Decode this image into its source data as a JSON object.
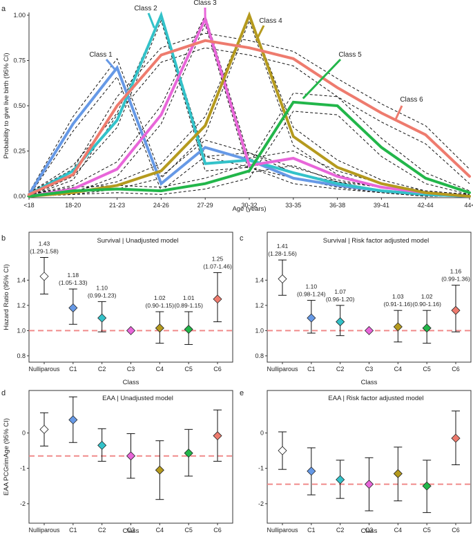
{
  "chart_data": [
    {
      "panel": "a",
      "type": "line",
      "title": "",
      "xlabel": "Age (years)",
      "ylabel": "Probability to give live birth (95% CI)",
      "categories": [
        "<18",
        "18-20",
        "21-23",
        "24-26",
        "27-29",
        "30-32",
        "33-35",
        "36-38",
        "39-41",
        "42-44",
        "44<"
      ],
      "ylim": [
        0,
        1
      ],
      "yticks": [
        0,
        0.25,
        0.5,
        0.75,
        1
      ],
      "ytick_labels": [
        "0.00",
        "0.25",
        "0.50",
        "0.75",
        "1.00"
      ],
      "series": [
        {
          "name": "Class 1",
          "color": "#6699e6",
          "values": [
            0.01,
            0.4,
            0.71,
            0.07,
            0.27,
            0.2,
            0.1,
            0.06,
            0.03,
            0.01,
            0.0
          ],
          "ci_lower": [
            0.0,
            0.36,
            0.66,
            0.03,
            0.22,
            0.16,
            0.07,
            0.04,
            0.02,
            0.0,
            0.0
          ],
          "ci_upper": [
            0.02,
            0.44,
            0.76,
            0.11,
            0.31,
            0.24,
            0.13,
            0.08,
            0.05,
            0.02,
            0.01
          ],
          "label_pos": "left"
        },
        {
          "name": "Class 2",
          "color": "#33c2c9",
          "values": [
            0.01,
            0.14,
            0.42,
            1.0,
            0.18,
            0.2,
            0.13,
            0.07,
            0.03,
            0.01,
            0.0
          ],
          "ci_lower": [
            0.0,
            0.11,
            0.38,
            0.97,
            0.14,
            0.16,
            0.1,
            0.05,
            0.02,
            0.0,
            0.0
          ],
          "ci_upper": [
            0.02,
            0.17,
            0.46,
            1.0,
            0.22,
            0.24,
            0.16,
            0.09,
            0.05,
            0.02,
            0.01
          ],
          "label_pos": "top"
        },
        {
          "name": "Class 3",
          "color": "#e866d9",
          "values": [
            0.0,
            0.04,
            0.15,
            0.45,
            0.98,
            0.17,
            0.21,
            0.11,
            0.05,
            0.02,
            0.0
          ],
          "ci_lower": [
            0.0,
            0.02,
            0.11,
            0.4,
            0.95,
            0.13,
            0.17,
            0.08,
            0.03,
            0.01,
            0.0
          ],
          "ci_upper": [
            0.01,
            0.06,
            0.19,
            0.5,
            1.0,
            0.21,
            0.25,
            0.14,
            0.07,
            0.03,
            0.01
          ],
          "label_pos": "top"
        },
        {
          "name": "Class 4",
          "color": "#b59a1e",
          "values": [
            0.0,
            0.02,
            0.06,
            0.14,
            0.39,
            1.0,
            0.33,
            0.16,
            0.07,
            0.02,
            0.0
          ],
          "ci_lower": [
            0.0,
            0.01,
            0.04,
            0.1,
            0.34,
            0.97,
            0.28,
            0.12,
            0.05,
            0.01,
            0.0
          ],
          "ci_upper": [
            0.01,
            0.03,
            0.08,
            0.18,
            0.44,
            1.0,
            0.38,
            0.2,
            0.09,
            0.03,
            0.01
          ],
          "label_pos": "right"
        },
        {
          "name": "Class 5",
          "color": "#22b64a",
          "values": [
            0.0,
            0.03,
            0.04,
            0.03,
            0.07,
            0.14,
            0.52,
            0.5,
            0.27,
            0.1,
            0.02
          ],
          "ci_lower": [
            0.0,
            0.01,
            0.02,
            0.01,
            0.04,
            0.1,
            0.47,
            0.45,
            0.22,
            0.07,
            0.01
          ],
          "ci_upper": [
            0.01,
            0.05,
            0.06,
            0.05,
            0.1,
            0.18,
            0.57,
            0.55,
            0.32,
            0.13,
            0.03
          ],
          "label_pos": "right"
        },
        {
          "name": "Class 6",
          "color": "#ee7b6e",
          "values": [
            0.01,
            0.12,
            0.5,
            0.78,
            0.86,
            0.82,
            0.76,
            0.6,
            0.46,
            0.34,
            0.11
          ],
          "ci_lower": [
            0.0,
            0.09,
            0.45,
            0.74,
            0.82,
            0.78,
            0.72,
            0.55,
            0.41,
            0.29,
            0.07
          ],
          "ci_upper": [
            0.02,
            0.15,
            0.55,
            0.82,
            0.9,
            0.86,
            0.8,
            0.65,
            0.51,
            0.39,
            0.15
          ],
          "label_pos": "right"
        }
      ]
    },
    {
      "panel": "b",
      "type": "scatter",
      "title": "Survival | Unadjusted model",
      "xlabel": "Class",
      "ylabel": "Hazard Ratio (95% CI)",
      "categories": [
        "Nulliparous",
        "C1",
        "C2",
        "C3",
        "C4",
        "C5",
        "C6"
      ],
      "ylim": [
        0.75,
        1.78
      ],
      "yticks": [
        0.8,
        1.0,
        1.2,
        1.4
      ],
      "ytick_labels": [
        "0.8",
        "1.0",
        "1.2",
        "1.4"
      ],
      "reference_line": 1.0,
      "values": [
        1.43,
        1.18,
        1.1,
        1.0,
        1.02,
        1.01,
        1.25
      ],
      "ci_lower": [
        1.29,
        1.05,
        0.99,
        null,
        0.9,
        0.89,
        1.07
      ],
      "ci_upper": [
        1.58,
        1.33,
        1.23,
        null,
        1.15,
        1.15,
        1.46
      ],
      "point_labels": [
        "1.43",
        "1.18",
        "1.10",
        "",
        "1.02",
        "1.01",
        "1.25"
      ],
      "ci_labels": [
        "(1.29-1.58)",
        "(1.05-1.33)",
        "(0.99-1.23)",
        "",
        "(0.90-1.15)",
        "(0.89-1.15)",
        "(1.07-1.46)"
      ],
      "colors": [
        "#ffffff",
        "#6699e6",
        "#33c2c9",
        "#e866d9",
        "#b59a1e",
        "#22b64a",
        "#ee7b6e"
      ]
    },
    {
      "panel": "c",
      "type": "scatter",
      "title": "Survival | Risk factor adjusted model",
      "xlabel": "Class",
      "ylabel": "",
      "categories": [
        "Nulliparous",
        "C1",
        "C2",
        "C3",
        "C4",
        "C5",
        "C6"
      ],
      "ylim": [
        0.75,
        1.78
      ],
      "yticks": [
        0.8,
        1.0,
        1.2,
        1.4
      ],
      "ytick_labels": [
        "0.8",
        "1.0",
        "1.2",
        "1.4"
      ],
      "reference_line": 1.0,
      "values": [
        1.41,
        1.1,
        1.07,
        1.0,
        1.03,
        1.02,
        1.16
      ],
      "ci_lower": [
        1.28,
        0.98,
        0.96,
        null,
        0.91,
        0.9,
        0.99
      ],
      "ci_upper": [
        1.56,
        1.24,
        1.2,
        null,
        1.16,
        1.16,
        1.36
      ],
      "point_labels": [
        "1.41",
        "1.10",
        "1.07",
        "",
        "1.03",
        "1.02",
        "1.16"
      ],
      "ci_labels": [
        "(1.28-1.56)",
        "(0.98-1.24)",
        "(0.96-1.20)",
        "",
        "(0.91-1.16)",
        "(0.90-1.16)",
        "(0.99-1.36)"
      ],
      "colors": [
        "#ffffff",
        "#6699e6",
        "#33c2c9",
        "#e866d9",
        "#b59a1e",
        "#22b64a",
        "#ee7b6e"
      ]
    },
    {
      "panel": "d",
      "type": "scatter",
      "title": "EAA | Unadjusted model",
      "xlabel": "Class",
      "ylabel": "EAA PCGrimAge (95% CI)",
      "categories": [
        "Nulliparous",
        "C1",
        "C2",
        "C3",
        "C4",
        "C5",
        "C6"
      ],
      "ylim": [
        -2.55,
        1.2
      ],
      "yticks": [
        -2,
        -1,
        0
      ],
      "ytick_labels": [
        "-2",
        "-1",
        "0"
      ],
      "reference_line": -0.65,
      "values": [
        0.1,
        0.37,
        -0.35,
        -0.65,
        -1.05,
        -0.57,
        -0.08
      ],
      "ci_lower": [
        -0.37,
        -0.27,
        -0.8,
        -1.28,
        -1.88,
        -1.22,
        -0.8
      ],
      "ci_upper": [
        0.57,
        1.02,
        0.12,
        -0.02,
        -0.22,
        0.1,
        0.65
      ],
      "colors": [
        "#ffffff",
        "#6699e6",
        "#33c2c9",
        "#e866d9",
        "#b59a1e",
        "#22b64a",
        "#ee7b6e"
      ]
    },
    {
      "panel": "e",
      "type": "scatter",
      "title": "EAA | Risk factor adjusted model",
      "xlabel": "Class",
      "ylabel": "",
      "categories": [
        "Nulliparous",
        "C1",
        "C2",
        "C3",
        "C4",
        "C5",
        "C6"
      ],
      "ylim": [
        -2.55,
        1.2
      ],
      "yticks": [
        -2,
        -1,
        0
      ],
      "ytick_labels": [
        "-2",
        "-1",
        "0"
      ],
      "reference_line": -1.45,
      "values": [
        -0.5,
        -1.08,
        -1.32,
        -1.45,
        -1.15,
        -1.5,
        -0.15
      ],
      "ci_lower": [
        -1.03,
        -1.75,
        -1.85,
        -2.2,
        -1.92,
        -2.25,
        -0.9
      ],
      "ci_upper": [
        0.03,
        -0.42,
        -0.77,
        -0.7,
        -0.4,
        -0.77,
        0.62
      ],
      "colors": [
        "#ffffff",
        "#6699e6",
        "#33c2c9",
        "#e866d9",
        "#b59a1e",
        "#22b64a",
        "#ee7b6e"
      ]
    }
  ]
}
